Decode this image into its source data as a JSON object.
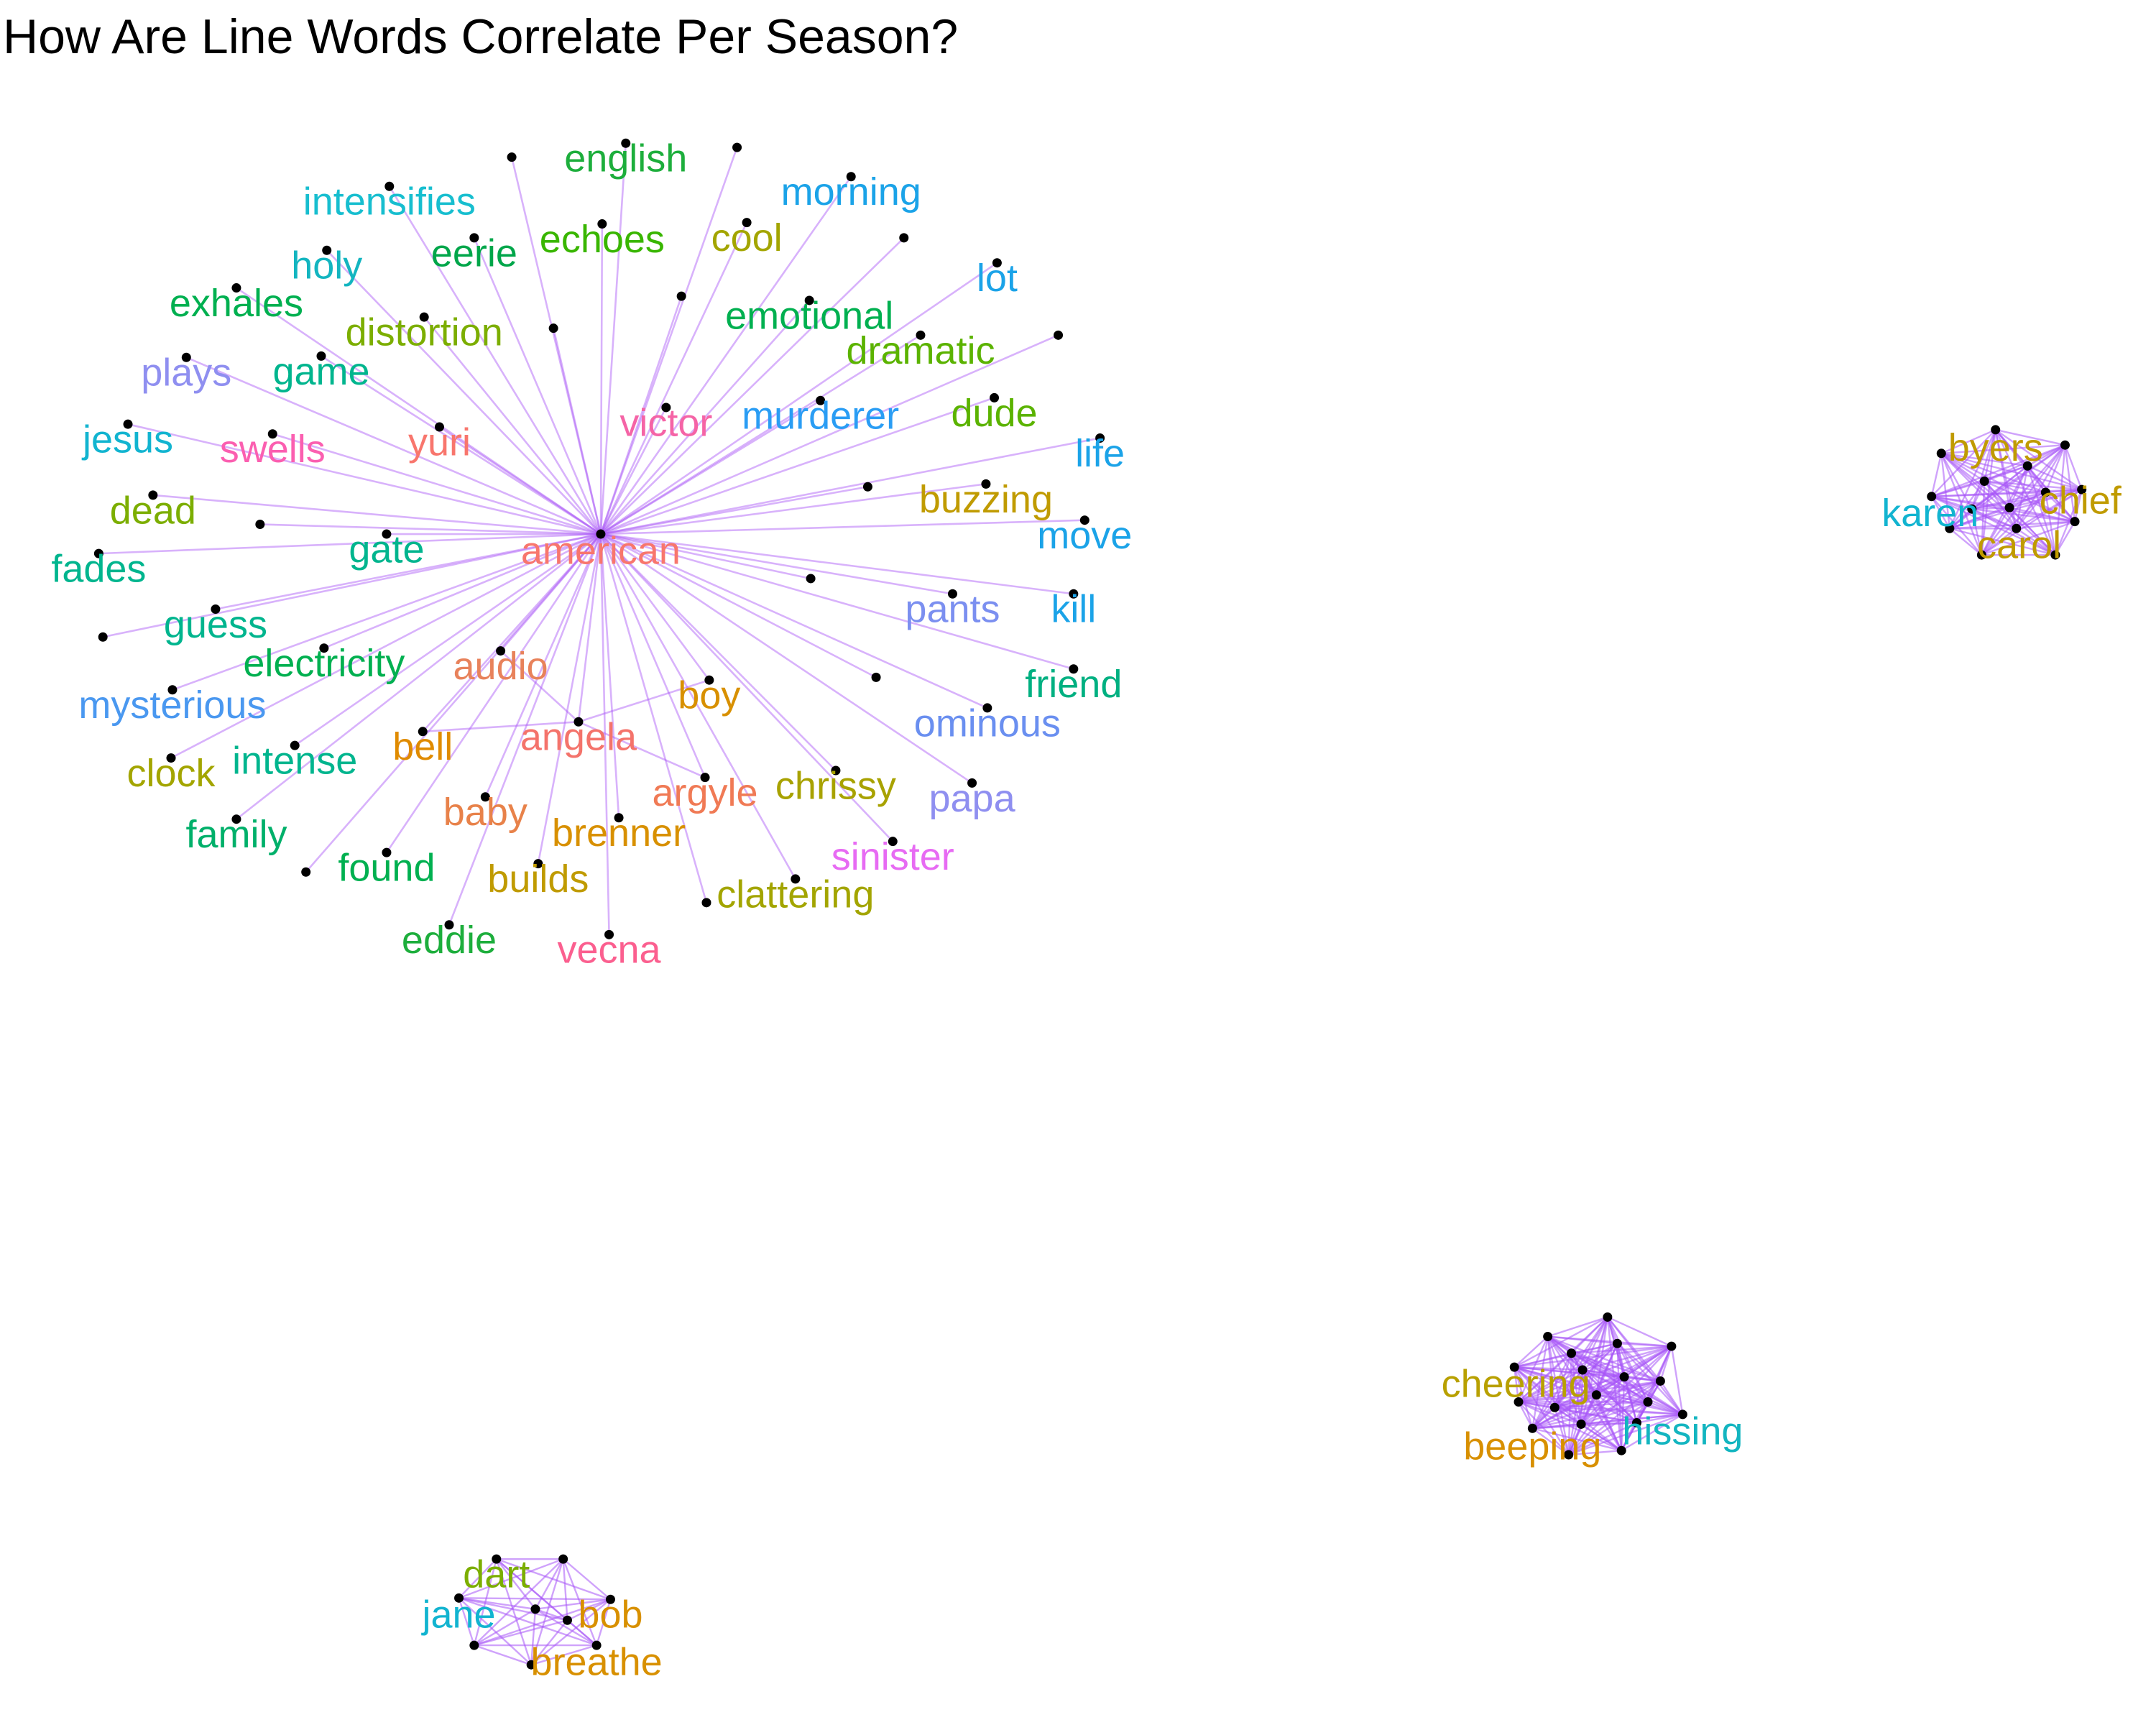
{
  "title": "How Are Line Words Correlate Per Season?",
  "colors": {
    "edge": "#a855f7",
    "node": "#000000"
  },
  "nodes": [
    {
      "id": "american",
      "label": "american",
      "color": "#f8766d"
    },
    {
      "id": "english",
      "label": "english",
      "color": "#1dae3c"
    },
    {
      "id": "intensifies",
      "label": "intensifies",
      "color": "#17becf"
    },
    {
      "id": "morning",
      "label": "morning",
      "color": "#1ba3e8"
    },
    {
      "id": "cool",
      "label": "cool",
      "color": "#a3a500"
    },
    {
      "id": "echoes",
      "label": "echoes",
      "color": "#39b600"
    },
    {
      "id": "eerie",
      "label": "eerie",
      "color": "#00a64a"
    },
    {
      "id": "holy",
      "label": "holy",
      "color": "#13b5c0"
    },
    {
      "id": "lot",
      "label": "lot",
      "color": "#1ba3e8"
    },
    {
      "id": "exhales",
      "label": "exhales",
      "color": "#00b050"
    },
    {
      "id": "distortion",
      "label": "distortion",
      "color": "#7cae00"
    },
    {
      "id": "emotional",
      "label": "emotional",
      "color": "#00b050"
    },
    {
      "id": "dramatic",
      "label": "dramatic",
      "color": "#5bb300"
    },
    {
      "id": "plays",
      "label": "plays",
      "color": "#8f8ff0"
    },
    {
      "id": "game",
      "label": "game",
      "color": "#00b58e"
    },
    {
      "id": "victor",
      "label": "victor",
      "color": "#f564a6"
    },
    {
      "id": "murderer",
      "label": "murderer",
      "color": "#2a9df4"
    },
    {
      "id": "dude",
      "label": "dude",
      "color": "#5bb300"
    },
    {
      "id": "jesus",
      "label": "jesus",
      "color": "#12b4d0"
    },
    {
      "id": "swells",
      "label": "swells",
      "color": "#fb5fb0"
    },
    {
      "id": "yuri",
      "label": "yuri",
      "color": "#f8766d"
    },
    {
      "id": "life",
      "label": "life",
      "color": "#1ba3e8"
    },
    {
      "id": "dead",
      "label": "dead",
      "color": "#7cae00"
    },
    {
      "id": "buzzing",
      "label": "buzzing",
      "color": "#c09b00"
    },
    {
      "id": "move",
      "label": "move",
      "color": "#1ba3e8"
    },
    {
      "id": "fades",
      "label": "fades",
      "color": "#00b58e"
    },
    {
      "id": "gate",
      "label": "gate",
      "color": "#00b58e"
    },
    {
      "id": "guess",
      "label": "guess",
      "color": "#00b58e"
    },
    {
      "id": "pants",
      "label": "pants",
      "color": "#7b8ff0"
    },
    {
      "id": "kill",
      "label": "kill",
      "color": "#1ba3e8"
    },
    {
      "id": "electricity",
      "label": "electricity",
      "color": "#00b050"
    },
    {
      "id": "audio",
      "label": "audio",
      "color": "#e8825b"
    },
    {
      "id": "friend",
      "label": "friend",
      "color": "#00b081"
    },
    {
      "id": "boy",
      "label": "boy",
      "color": "#d89000"
    },
    {
      "id": "mysterious",
      "label": "mysterious",
      "color": "#4a98f0"
    },
    {
      "id": "ominous",
      "label": "ominous",
      "color": "#6a8ff0"
    },
    {
      "id": "bell",
      "label": "bell",
      "color": "#e08b00"
    },
    {
      "id": "angela",
      "label": "angela",
      "color": "#f4736b"
    },
    {
      "id": "clock",
      "label": "clock",
      "color": "#a3a500"
    },
    {
      "id": "intense",
      "label": "intense",
      "color": "#00b58e"
    },
    {
      "id": "chrissy",
      "label": "chrissy",
      "color": "#a8a200"
    },
    {
      "id": "argyle",
      "label": "argyle",
      "color": "#f07a55"
    },
    {
      "id": "papa",
      "label": "papa",
      "color": "#8f8ff0"
    },
    {
      "id": "family",
      "label": "family",
      "color": "#00b06a"
    },
    {
      "id": "baby",
      "label": "baby",
      "color": "#e8824a"
    },
    {
      "id": "brenner",
      "label": "brenner",
      "color": "#d89000"
    },
    {
      "id": "sinister",
      "label": "sinister",
      "color": "#e76bf3"
    },
    {
      "id": "found",
      "label": "found",
      "color": "#00b050"
    },
    {
      "id": "builds",
      "label": "builds",
      "color": "#c09b00"
    },
    {
      "id": "clattering",
      "label": "clattering",
      "color": "#a3a500"
    },
    {
      "id": "eddie",
      "label": "eddie",
      "color": "#1dae3c"
    },
    {
      "id": "vecna",
      "label": "vecna",
      "color": "#fb5f8f"
    },
    {
      "id": "byers",
      "label": "byers",
      "color": "#c09b00"
    },
    {
      "id": "karen",
      "label": "karen",
      "color": "#12b4d0"
    },
    {
      "id": "chief",
      "label": "chief",
      "color": "#c09b00"
    },
    {
      "id": "carol",
      "label": "carol",
      "color": "#c09b00"
    },
    {
      "id": "cheering",
      "label": "cheering",
      "color": "#b8a000"
    },
    {
      "id": "beeping",
      "label": "beeping",
      "color": "#d89000"
    },
    {
      "id": "hissing",
      "label": "hissing",
      "color": "#13b5c0"
    },
    {
      "id": "dart",
      "label": "dart",
      "color": "#7cae00"
    },
    {
      "id": "jane",
      "label": "jane",
      "color": "#12b4d0"
    },
    {
      "id": "bob",
      "label": "bob",
      "color": "#d89000"
    },
    {
      "id": "breathe",
      "label": "breathe",
      "color": "#d89000"
    }
  ],
  "edges": [
    [
      "american",
      "english"
    ],
    [
      "american",
      "intensifies"
    ],
    [
      "american",
      "morning"
    ],
    [
      "american",
      "cool"
    ],
    [
      "american",
      "echoes"
    ],
    [
      "american",
      "eerie"
    ],
    [
      "american",
      "holy"
    ],
    [
      "american",
      "lot"
    ],
    [
      "american",
      "exhales"
    ],
    [
      "american",
      "distortion"
    ],
    [
      "american",
      "emotional"
    ],
    [
      "american",
      "dramatic"
    ],
    [
      "american",
      "plays"
    ],
    [
      "american",
      "game"
    ],
    [
      "american",
      "victor"
    ],
    [
      "american",
      "murderer"
    ],
    [
      "american",
      "dude"
    ],
    [
      "american",
      "jesus"
    ],
    [
      "american",
      "swells"
    ],
    [
      "american",
      "yuri"
    ],
    [
      "american",
      "life"
    ],
    [
      "american",
      "dead"
    ],
    [
      "american",
      "buzzing"
    ],
    [
      "american",
      "move"
    ],
    [
      "american",
      "fades"
    ],
    [
      "american",
      "gate"
    ],
    [
      "american",
      "guess"
    ],
    [
      "american",
      "pants"
    ],
    [
      "american",
      "kill"
    ],
    [
      "american",
      "electricity"
    ],
    [
      "american",
      "audio"
    ],
    [
      "american",
      "friend"
    ],
    [
      "american",
      "boy"
    ],
    [
      "american",
      "mysterious"
    ],
    [
      "american",
      "ominous"
    ],
    [
      "american",
      "bell"
    ],
    [
      "american",
      "angela"
    ],
    [
      "american",
      "clock"
    ],
    [
      "american",
      "intense"
    ],
    [
      "american",
      "chrissy"
    ],
    [
      "american",
      "argyle"
    ],
    [
      "american",
      "papa"
    ],
    [
      "american",
      "family"
    ],
    [
      "american",
      "baby"
    ],
    [
      "american",
      "brenner"
    ],
    [
      "american",
      "sinister"
    ],
    [
      "american",
      "found"
    ],
    [
      "american",
      "builds"
    ],
    [
      "american",
      "clattering"
    ],
    [
      "american",
      "eddie"
    ],
    [
      "american",
      "vecna"
    ],
    [
      "angela",
      "bell"
    ],
    [
      "angela",
      "audio"
    ],
    [
      "angela",
      "argyle"
    ],
    [
      "angela",
      "boy"
    ]
  ]
}
